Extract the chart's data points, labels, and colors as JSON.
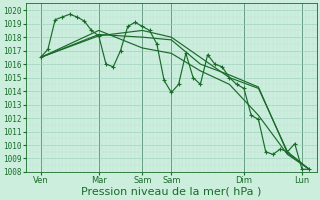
{
  "xlabel": "Pression niveau de la mer( hPa )",
  "ylim": [
    1008,
    1020.5
  ],
  "xlim": [
    0,
    240
  ],
  "background_color": "#cceedd",
  "grid_color_major": "#99ccbb",
  "grid_color_minor": "#bbddd0",
  "line_color": "#1a6b2a",
  "xlabel_fontsize": 8,
  "ytick_fontsize": 5.5,
  "xtick_fontsize": 6,
  "ytick_labels": [
    1008,
    1009,
    1010,
    1011,
    1012,
    1013,
    1014,
    1015,
    1016,
    1017,
    1018,
    1019,
    1020
  ],
  "xtick_positions": [
    12,
    60,
    96,
    120,
    180,
    228
  ],
  "xtick_labels": [
    "Ven",
    "Mar",
    "Sam",
    "Sam",
    "Dim",
    "Lun"
  ],
  "day_vlines": [
    12,
    60,
    96,
    120,
    180,
    228
  ],
  "series_marker": {
    "x": [
      12,
      18,
      24,
      30,
      36,
      42,
      48,
      54,
      60,
      66,
      72,
      78,
      84,
      90,
      96,
      102,
      108,
      114,
      120,
      126,
      132,
      138,
      144,
      150,
      156,
      162,
      168,
      174,
      180,
      186,
      192,
      198,
      204,
      210,
      216,
      222,
      228,
      234
    ],
    "y": [
      1016.5,
      1017.1,
      1019.3,
      1019.5,
      1019.7,
      1019.5,
      1019.2,
      1018.5,
      1018.1,
      1016.0,
      1015.8,
      1017.0,
      1018.8,
      1019.1,
      1018.8,
      1018.5,
      1017.5,
      1014.8,
      1013.9,
      1014.5,
      1016.8,
      1015.0,
      1014.5,
      1016.7,
      1016.0,
      1015.8,
      1015.0,
      1014.5,
      1014.2,
      1012.2,
      1011.9,
      1009.5,
      1009.3,
      1009.7,
      1009.5,
      1010.1,
      1008.2,
      1008.2
    ]
  },
  "series_smooth": [
    {
      "x": [
        12,
        60,
        96,
        120,
        144,
        168,
        192,
        216,
        234
      ],
      "y": [
        1016.5,
        1018.1,
        1018.5,
        1018.0,
        1016.5,
        1015.0,
        1014.2,
        1009.5,
        1008.2
      ]
    },
    {
      "x": [
        12,
        60,
        96,
        120,
        144,
        168,
        192,
        216,
        234
      ],
      "y": [
        1016.5,
        1018.2,
        1018.0,
        1017.8,
        1016.0,
        1015.2,
        1014.3,
        1009.4,
        1008.2
      ]
    },
    {
      "x": [
        12,
        60,
        96,
        120,
        144,
        168,
        192,
        216,
        234
      ],
      "y": [
        1016.5,
        1018.5,
        1017.2,
        1016.8,
        1015.5,
        1014.5,
        1012.2,
        1009.3,
        1008.2
      ]
    }
  ]
}
